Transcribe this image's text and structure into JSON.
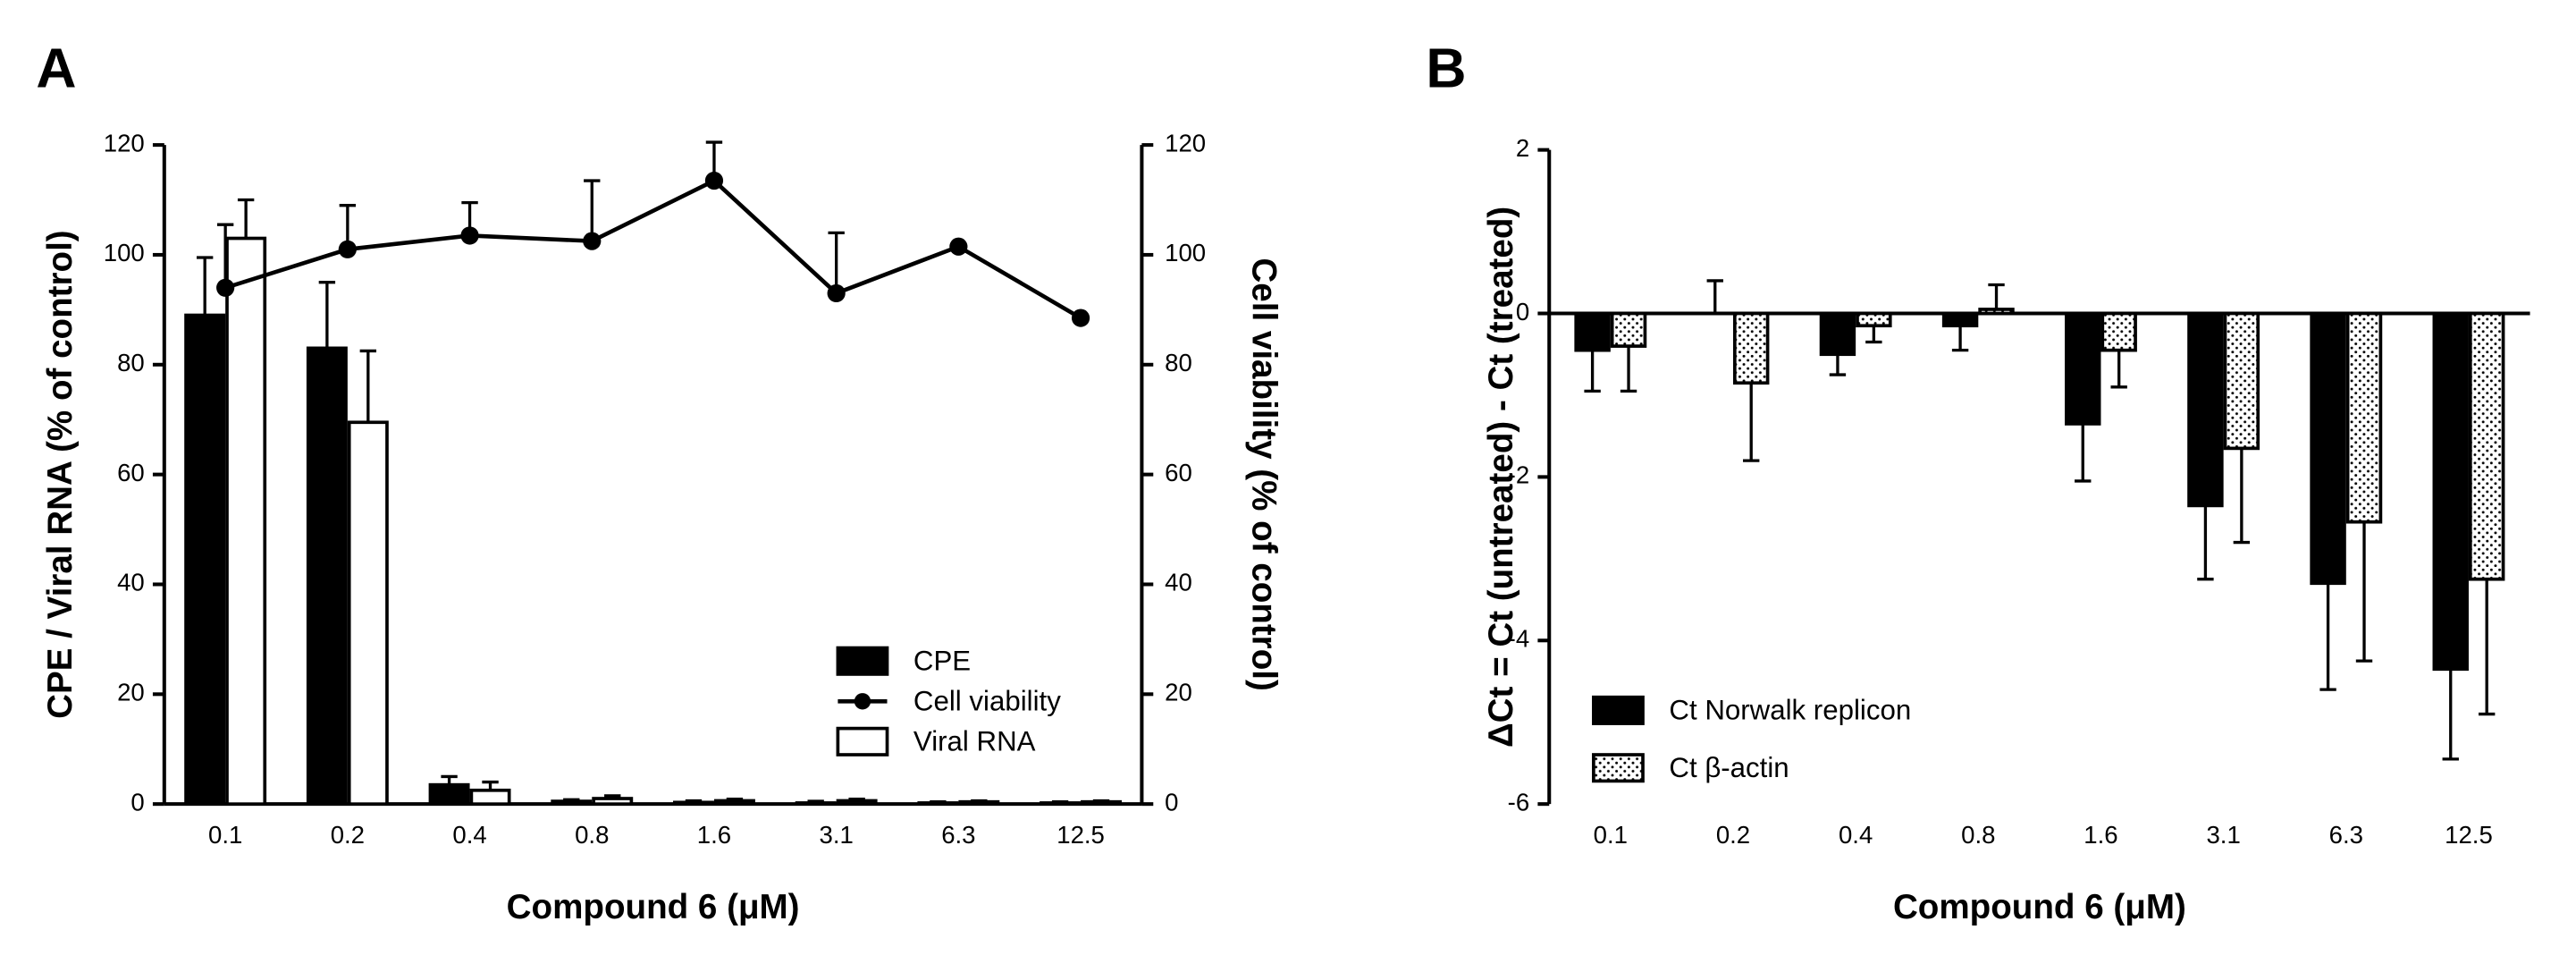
{
  "chart_data": [
    {
      "type": "bar",
      "panel": "A",
      "xlabel": "Compound 6 (μM)",
      "ylabel": "CPE / Viral RNA (% of control)",
      "y2label": "Cell viability (% of control)",
      "categories": [
        "0.1",
        "0.2",
        "0.4",
        "0.8",
        "1.6",
        "3.1",
        "6.3",
        "12.5"
      ],
      "series": [
        {
          "name": "CPE",
          "type": "bar",
          "color": "#000000",
          "values": [
            89,
            83,
            3.5,
            0.5,
            0.3,
            0.2,
            0.2,
            0.2
          ],
          "errors": [
            10.5,
            12,
            1.5,
            0.3,
            0.3,
            0.3,
            0.2,
            0.2
          ]
        },
        {
          "name": "Cell viability",
          "type": "line",
          "axis": "y2",
          "color": "#000000",
          "values": [
            94,
            101,
            103.5,
            102.5,
            113.5,
            93,
            101.5,
            88.5
          ],
          "errors": [
            11.5,
            8,
            6,
            11,
            7,
            11,
            0,
            0
          ]
        },
        {
          "name": "Viral RNA",
          "type": "bar",
          "color": "#ffffff",
          "values": [
            103,
            69.5,
            2.5,
            1,
            0.6,
            0.6,
            0.4,
            0.4
          ],
          "errors": [
            7,
            13,
            1.5,
            0.5,
            0.3,
            0.3,
            0.2,
            0.2
          ]
        }
      ],
      "ylim": [
        0,
        120
      ],
      "yticks": [
        0,
        20,
        40,
        60,
        80,
        100,
        120
      ],
      "y2lim": [
        0,
        120
      ],
      "y2ticks": [
        0,
        20,
        40,
        60,
        80,
        100,
        120
      ],
      "legend": "lower right"
    },
    {
      "type": "bar",
      "panel": "B",
      "xlabel": "Compound 6 (μM)",
      "ylabel": "ΔCt = Ct (untreated) - Ct (treated)",
      "categories": [
        "0.1",
        "0.2",
        "0.4",
        "0.8",
        "1.6",
        "3.1",
        "6.3",
        "12.5"
      ],
      "series": [
        {
          "name": "Ct Norwalk replicon",
          "type": "bar",
          "color": "#000000",
          "values": [
            -0.45,
            0,
            -0.5,
            -0.15,
            -1.35,
            -2.35,
            -3.3,
            -4.35
          ],
          "errors": [
            0.5,
            0.4,
            0.25,
            0.3,
            0.7,
            0.9,
            1.3,
            1.1
          ]
        },
        {
          "name": "Ct β-actin",
          "type": "bar",
          "color": "#ffffff",
          "pattern": "dots",
          "values": [
            -0.4,
            -0.85,
            -0.15,
            0.05,
            -0.45,
            -1.65,
            -2.55,
            -3.25
          ],
          "errors": [
            0.55,
            0.95,
            0.2,
            0.3,
            0.45,
            1.15,
            1.7,
            1.65
          ]
        }
      ],
      "ylim": [
        -6,
        2
      ],
      "yticks": [
        -6,
        -4,
        -2,
        0,
        2
      ],
      "legend": "lower left"
    }
  ]
}
